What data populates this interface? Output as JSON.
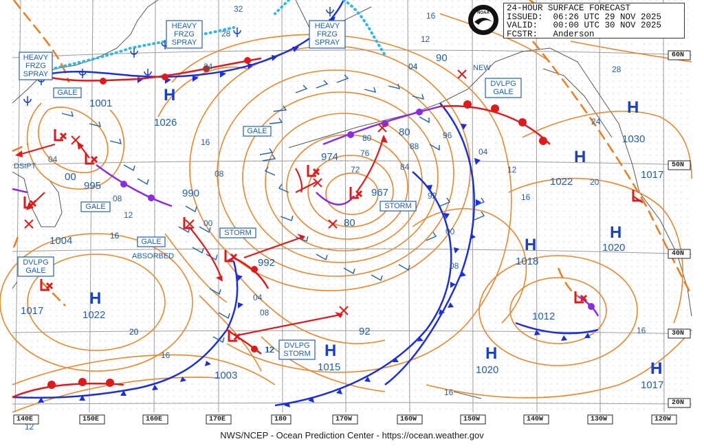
{
  "header": {
    "title": "24-HOUR SURFACE FORECAST",
    "issued": "ISSUED:  06:26 UTC 29 NOV 2025",
    "valid": "VALID:   00:00 UTC 30 NOV 2025",
    "forecaster": "FCSTR:   Anderson"
  },
  "logo_text": "NOAA",
  "credit": "NWS/NCEP - Ocean Prediction Center - https://ocean.weather.gov",
  "colors": {
    "isobar": "#e8862b",
    "label_blue": "#1f5fb0",
    "high_blue": "#1a3fc8",
    "low_red": "#e02020",
    "cold_front": "#1a2ee0",
    "warm_front": "#e01a1a",
    "occluded_front": "#8a2be2",
    "trough": "#f07a1a",
    "ice_cyan": "#2ab8e6"
  },
  "lon_labels": [
    "140E",
    "150E",
    "160E",
    "170E",
    "180",
    "170W",
    "160W",
    "150W",
    "140W",
    "130W",
    "120W"
  ],
  "lat_labels": [
    "60N",
    "50N",
    "40N",
    "30N",
    "20N"
  ],
  "highs": [
    {
      "pressure": "1026"
    },
    {
      "pressure": "1022"
    },
    {
      "pressure": "1015"
    },
    {
      "pressure": "1018"
    },
    {
      "pressure": "1020"
    },
    {
      "pressure": "1030"
    },
    {
      "pressure": "1022"
    },
    {
      "pressure": "1017"
    },
    {
      "pressure": "1020"
    },
    {
      "pressure": "1017"
    }
  ],
  "lows": [
    {
      "pressure": "1001"
    },
    {
      "pressure": "995"
    },
    {
      "pressure": "1004"
    },
    {
      "pressure": "1017"
    },
    {
      "pressure": "990"
    },
    {
      "pressure": "992"
    },
    {
      "pressure": "1003"
    },
    {
      "pressure": "974"
    },
    {
      "pressure": "967"
    },
    {
      "pressure": "1012"
    }
  ],
  "boxed_labels": {
    "heavy_frzg_spray_w": [
      "HEAVY",
      "FRZG",
      "SPRAY"
    ],
    "heavy_frzg_spray_c": [
      "HEAVY",
      "FRZG",
      "SPRAY"
    ],
    "heavy_frzg_spray_e": [
      "HEAVY",
      "FRZG",
      "SPRAY"
    ],
    "gale_1": "GALE",
    "gale_2": "GALE",
    "gale_3": "GALE",
    "gale_4": "GALE",
    "storm_1": "STORM",
    "storm_2": "STORM",
    "dvlpg_gale_w": [
      "DVLPG",
      "GALE"
    ],
    "dvlpg_gale_e": [
      "DVLPG",
      "GALE"
    ],
    "dvlpg_storm": [
      "DVLPG",
      "STORM"
    ]
  },
  "plain_labels": {
    "dsipt": "DSIPT",
    "absorbed": "ABSORBED",
    "new": "NEW"
  },
  "isobar_labels": [
    "32",
    "28",
    "24",
    "16",
    "12",
    "04",
    "00",
    "08",
    "16",
    "12",
    "20",
    "16",
    "12",
    "08",
    "04",
    "00",
    "92",
    "96",
    "04",
    "12",
    "16",
    "20",
    "24",
    "28",
    "16",
    "12",
    "90",
    "04",
    "88",
    "84",
    "80",
    "76",
    "72",
    "80",
    "80",
    "92",
    "00",
    "08",
    "16",
    "12",
    "16",
    "04",
    "08",
    "16",
    "20"
  ]
}
